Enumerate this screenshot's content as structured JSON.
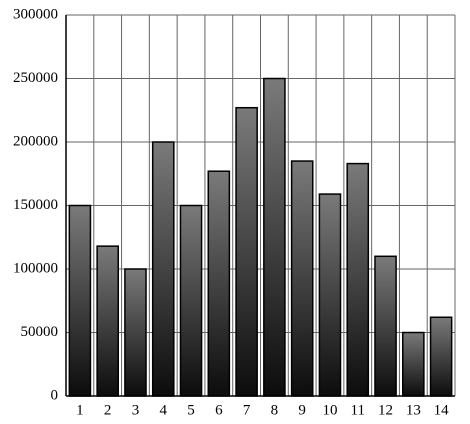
{
  "chart_data": {
    "type": "bar",
    "categories": [
      "1",
      "2",
      "3",
      "4",
      "5",
      "6",
      "7",
      "8",
      "9",
      "10",
      "11",
      "12",
      "13",
      "14"
    ],
    "values": [
      150000,
      118000,
      100000,
      200000,
      150000,
      177000,
      227000,
      250000,
      185000,
      159000,
      183000,
      110000,
      50000,
      62000
    ],
    "color": "#555555",
    "ylim": [
      0,
      300000
    ],
    "yticks": [
      0,
      50000,
      100000,
      150000,
      200000,
      250000,
      300000
    ],
    "grid": true
  }
}
